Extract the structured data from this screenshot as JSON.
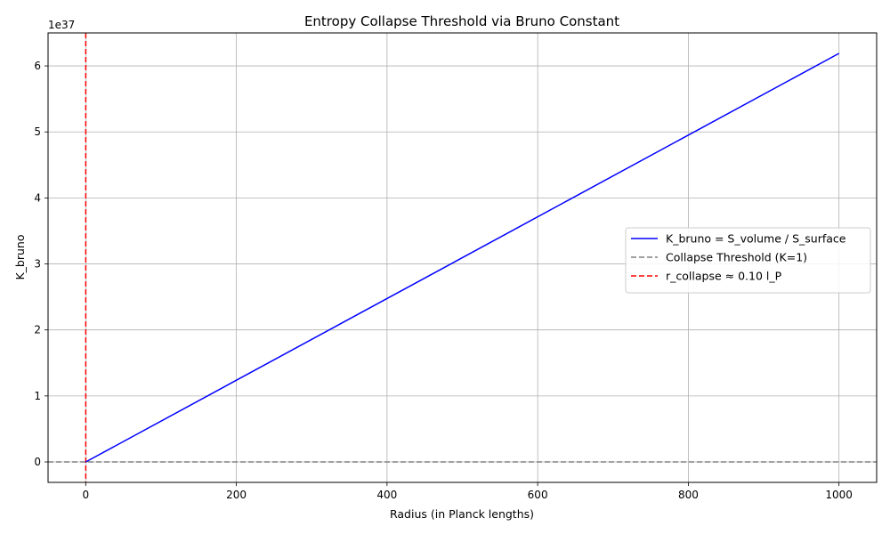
{
  "chart_data": {
    "type": "line",
    "title": "Entropy Collapse Threshold via Bruno Constant",
    "xlabel": "Radius (in Planck lengths)",
    "ylabel": "K_bruno",
    "y_offset_label": "1e37",
    "xlim": [
      -50,
      1050
    ],
    "ylim": [
      -0.31,
      6.5
    ],
    "y_scale_factor": "1e37",
    "x_ticks": [
      0,
      200,
      400,
      600,
      800,
      1000
    ],
    "x_tick_labels": [
      "0",
      "200",
      "400",
      "600",
      "800",
      "1000"
    ],
    "y_ticks": [
      0,
      1,
      2,
      3,
      4,
      5,
      6
    ],
    "y_tick_labels": [
      "0",
      "1",
      "2",
      "3",
      "4",
      "5",
      "6"
    ],
    "grid": true,
    "legend_position": "center-right",
    "series": [
      {
        "name": "K_bruno = S_volume / S_surface",
        "color": "#0000ff",
        "style": "solid",
        "x": [
          0.1,
          1000
        ],
        "y": [
          0,
          6.19
        ]
      }
    ],
    "reference_lines": [
      {
        "name": "Collapse Threshold (K=1)",
        "orientation": "horizontal",
        "value": 0,
        "color": "#808080",
        "style": "dashed"
      },
      {
        "name": "r_collapse ≈ 0.10 l_P",
        "orientation": "vertical",
        "value": 0.1,
        "color": "#ff0000",
        "style": "dashed"
      }
    ]
  }
}
